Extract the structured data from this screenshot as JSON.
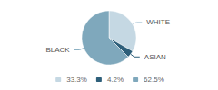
{
  "chart_data": {
    "type": "pie",
    "categories": [
      "WHITE",
      "ASIAN",
      "BLACK"
    ],
    "values": [
      33.3,
      4.2,
      62.5
    ],
    "value_labels": [
      "33.3%",
      "4.2%",
      "62.5%"
    ],
    "colors": [
      "#c5d8e3",
      "#2e5f7a",
      "#7fa8bc"
    ],
    "legend": "bottom"
  }
}
